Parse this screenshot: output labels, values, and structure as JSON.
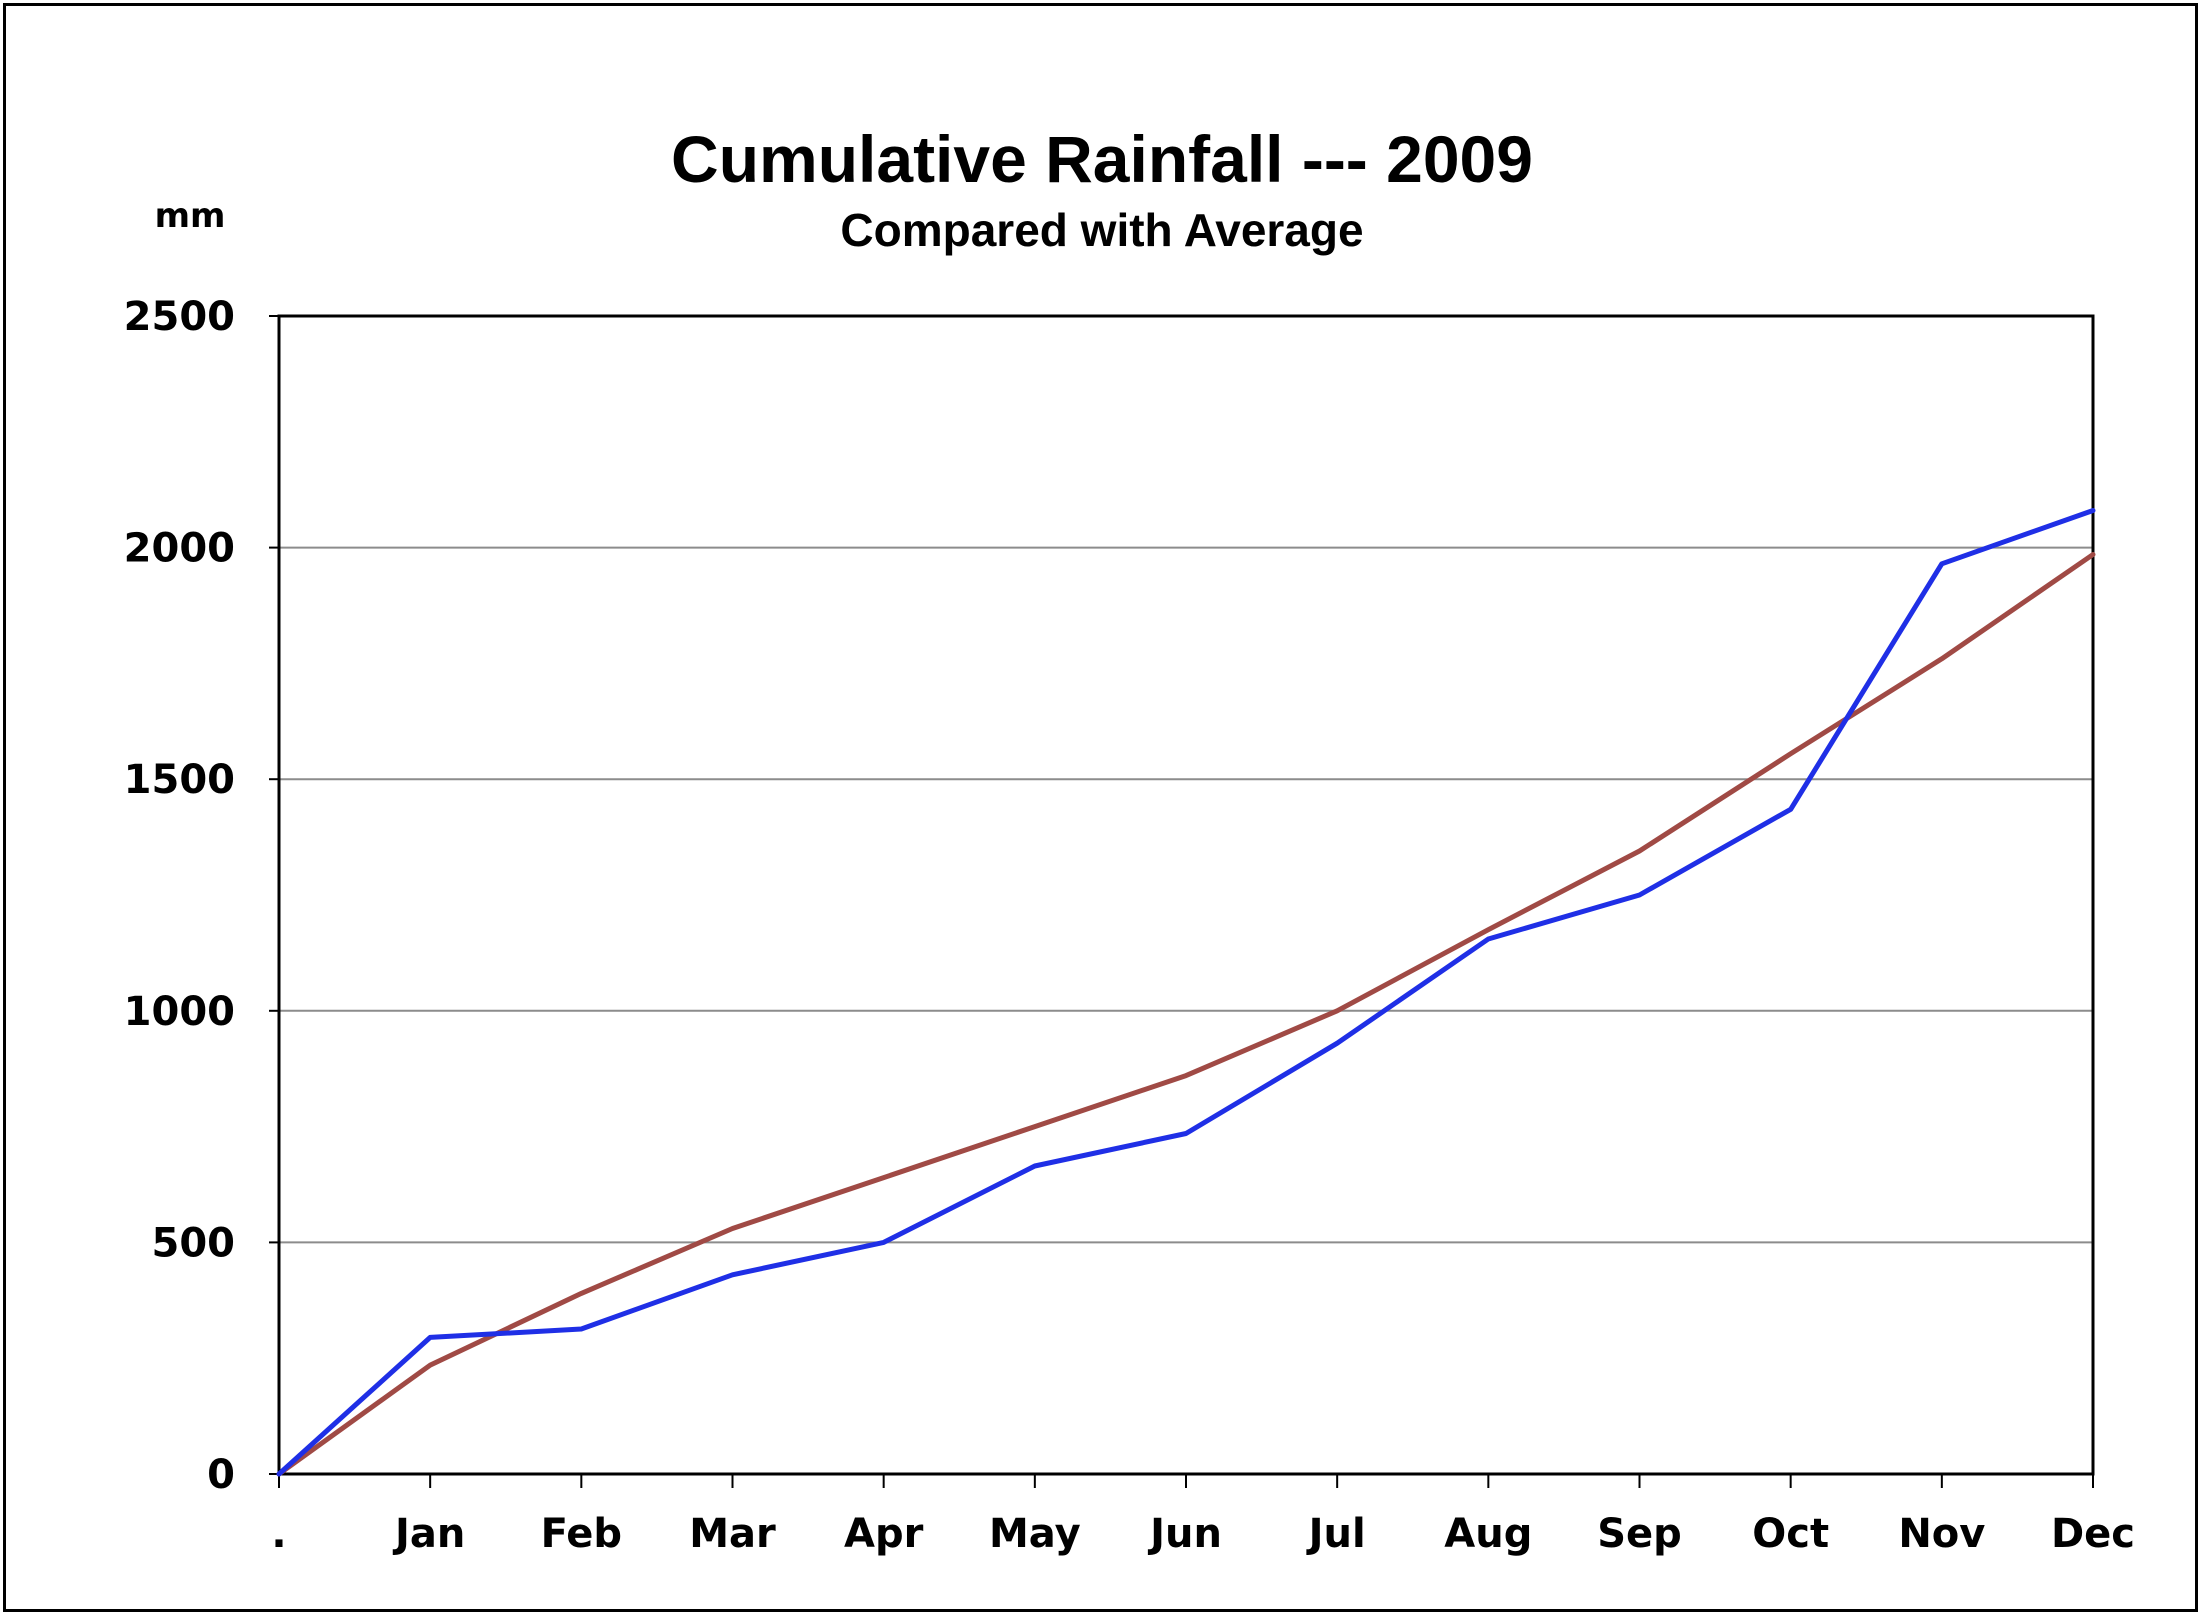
{
  "chart_data": {
    "type": "line",
    "title": "Cumulative Rainfall --- 2009",
    "subtitle": "Compared with Average",
    "ylabel": "mm",
    "xlabel": "",
    "categories": [
      ".",
      "Jan",
      "Feb",
      "Mar",
      "Apr",
      "May",
      "Jun",
      "Jul",
      "Aug",
      "Sep",
      "Oct",
      "Nov",
      "Dec"
    ],
    "ylim": [
      0,
      2500
    ],
    "yticks": [
      "0",
      "500",
      "1000",
      "1500",
      "2000",
      "2500"
    ],
    "grid": true,
    "legend": "none",
    "series": [
      {
        "color": "#1f2fe6",
        "values": [
          0,
          295,
          313,
          430,
          500,
          665,
          735,
          930,
          1155,
          1250,
          1435,
          1965,
          2080
        ]
      },
      {
        "color": "#a04a45",
        "values": [
          0,
          235,
          390,
          530,
          640,
          750,
          860,
          1000,
          1175,
          1345,
          1555,
          1760,
          1985
        ]
      }
    ]
  }
}
